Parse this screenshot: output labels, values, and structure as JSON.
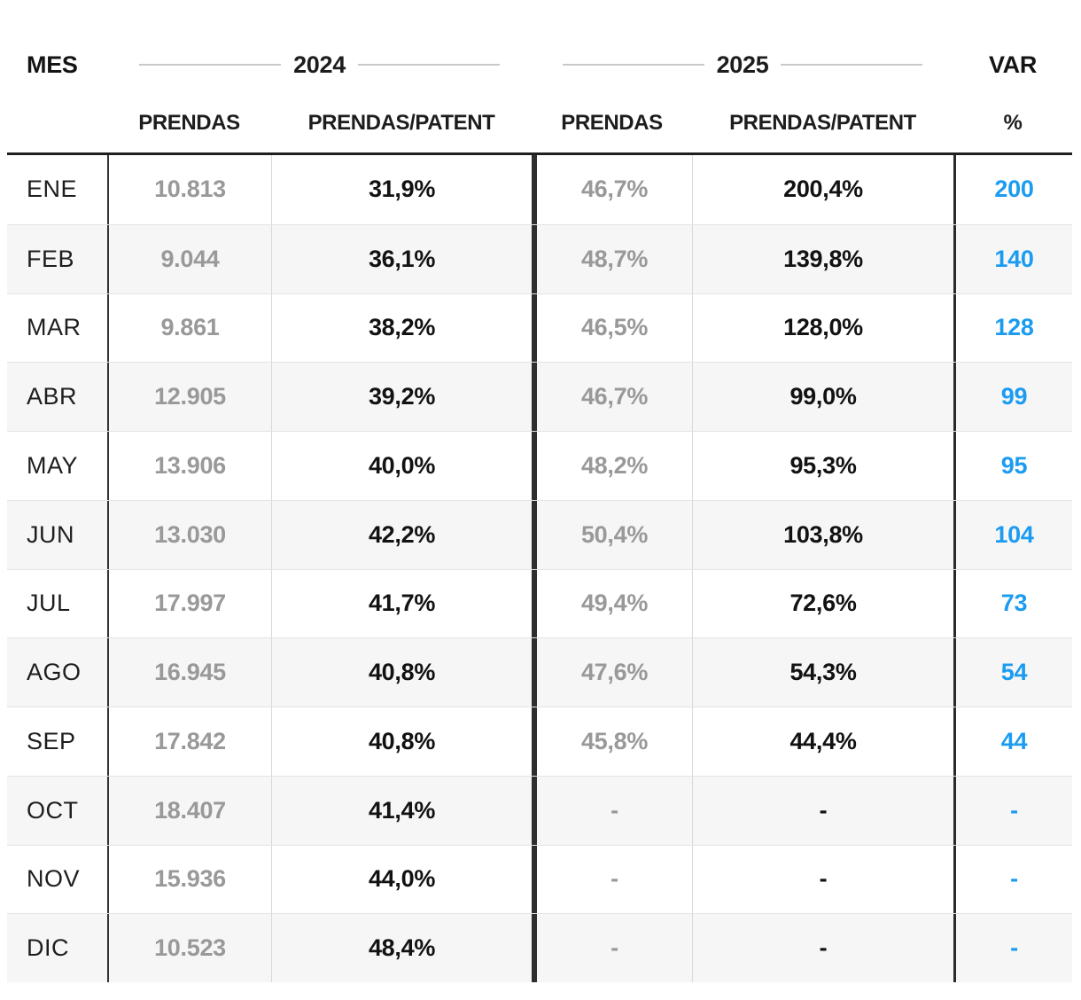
{
  "colors": {
    "accent_blue": "#1b9cf0",
    "muted_gray": "#999999",
    "text_black": "#121212",
    "zebra_row": "#f6f6f6",
    "border_dark": "#2e2e2e",
    "border_light": "#d9d9d9",
    "header_rule_gray": "#c9c9c9"
  },
  "chart_data": {
    "type": "table",
    "header": {
      "mes": "MES",
      "group_2024": "2024",
      "group_2025": "2025",
      "var": "VAR",
      "sub_prendas_2024": "PRENDAS",
      "sub_patent_2024": "PRENDAS/PATENT",
      "sub_prendas_2025": "PRENDAS",
      "sub_patent_2025": "PRENDAS/PATENT",
      "sub_pct": "%"
    },
    "columns": [
      "MES",
      "PRENDAS",
      "PRENDAS/PATENT",
      "PRENDAS",
      "PRENDAS/PATENT",
      "VAR %"
    ],
    "column_groups": [
      {
        "label": "2024",
        "span": 2
      },
      {
        "label": "2025",
        "span": 2
      }
    ],
    "rows": [
      [
        "ENE",
        "10.813",
        "31,9%",
        "46,7%",
        "200,4%",
        "200"
      ],
      [
        "FEB",
        "9.044",
        "36,1%",
        "48,7%",
        "139,8%",
        "140"
      ],
      [
        "MAR",
        "9.861",
        "38,2%",
        "46,5%",
        "128,0%",
        "128"
      ],
      [
        "ABR",
        "12.905",
        "39,2%",
        "46,7%",
        "99,0%",
        "99"
      ],
      [
        "MAY",
        "13.906",
        "40,0%",
        "48,2%",
        "95,3%",
        "95"
      ],
      [
        "JUN",
        "13.030",
        "42,2%",
        "50,4%",
        "103,8%",
        "104"
      ],
      [
        "JUL",
        "17.997",
        "41,7%",
        "49,4%",
        "72,6%",
        "73"
      ],
      [
        "AGO",
        "16.945",
        "40,8%",
        "47,6%",
        "54,3%",
        "54"
      ],
      [
        "SEP",
        "17.842",
        "40,8%",
        "45,8%",
        "44,4%",
        "44"
      ],
      [
        "OCT",
        "18.407",
        "41,4%",
        "-",
        "-",
        "-"
      ],
      [
        "NOV",
        "15.936",
        "44,0%",
        "-",
        "-",
        "-"
      ],
      [
        "DIC",
        "10.523",
        "48,4%",
        "-",
        "-",
        "-"
      ]
    ]
  }
}
